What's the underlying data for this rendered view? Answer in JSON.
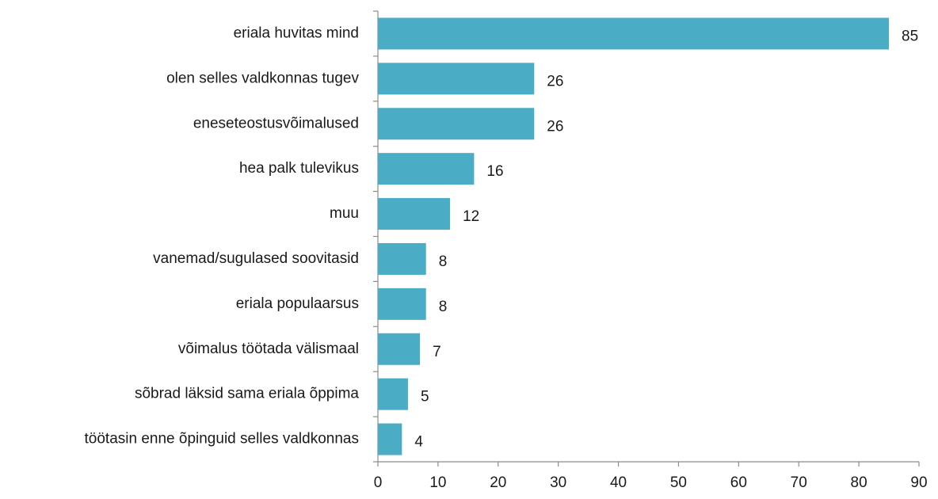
{
  "chart_data": {
    "type": "bar",
    "orientation": "horizontal",
    "categories": [
      "eriala huvitas mind",
      "olen selles valdkonnas tugev",
      "eneseteostusvõimalused",
      "hea palk tulevikus",
      "muu",
      "vanemad/sugulased soovitasid",
      "eriala populaarsus",
      "võimalus töötada välismaal",
      "sõbrad läksid sama eriala õppima",
      "töötasin enne õpinguid selles valdkonnas"
    ],
    "values": [
      85,
      26,
      26,
      16,
      12,
      8,
      8,
      7,
      5,
      4
    ],
    "color": "#4bacc6",
    "xlim": [
      0,
      90
    ],
    "xticks": [
      0,
      10,
      20,
      30,
      40,
      50,
      60,
      70,
      80,
      90
    ]
  }
}
